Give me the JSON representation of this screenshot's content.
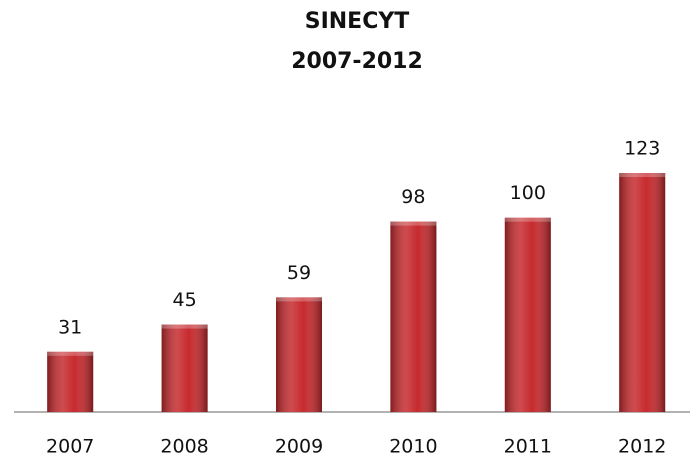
{
  "chart_data": {
    "type": "bar",
    "title": "SINECYT",
    "subtitle": "2007-2012",
    "categories": [
      "2007",
      "2008",
      "2009",
      "2010",
      "2011",
      "2012"
    ],
    "values": [
      31,
      45,
      59,
      98,
      100,
      123
    ],
    "color": "#c62a2e"
  }
}
